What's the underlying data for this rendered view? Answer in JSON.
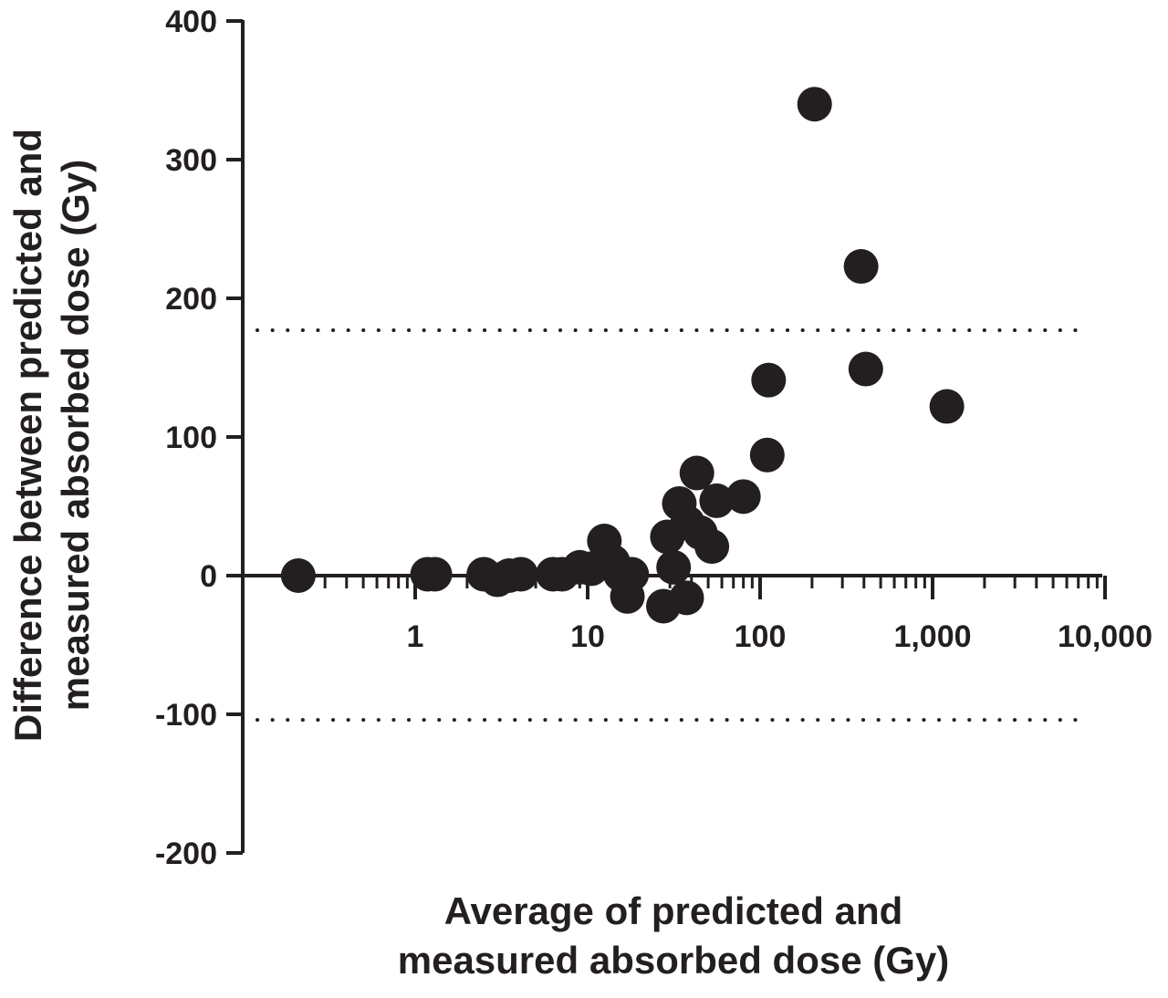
{
  "chart_data": {
    "type": "scatter",
    "xlabel": [
      "Average of predicted and",
      "measured absorbed dose (Gy)"
    ],
    "ylabel": [
      "Difference between predicted and",
      "measured absorbed dose (Gy)"
    ],
    "x_scale": "log",
    "xlim": [
      0.1,
      10000
    ],
    "ylim": [
      -200,
      400
    ],
    "x_ticks": [
      {
        "value": 1,
        "label": "1"
      },
      {
        "value": 10,
        "label": "10"
      },
      {
        "value": 100,
        "label": "100"
      },
      {
        "value": 1000,
        "label": "1,000"
      },
      {
        "value": 10000,
        "label": "10,000"
      }
    ],
    "y_ticks": [
      {
        "value": 400,
        "label": "400"
      },
      {
        "value": 300,
        "label": "300"
      },
      {
        "value": 200,
        "label": "200"
      },
      {
        "value": 100,
        "label": "100"
      },
      {
        "value": 0,
        "label": "0"
      },
      {
        "value": -100,
        "label": "-100"
      },
      {
        "value": -200,
        "label": "-200"
      }
    ],
    "reference_lines": [
      {
        "value": 0,
        "style": "solid"
      },
      {
        "value": 177,
        "style": "dotted"
      },
      {
        "value": -104,
        "style": "dotted"
      }
    ],
    "grid": false,
    "legend": "none",
    "marker_color": "#231f20",
    "points": [
      {
        "x": 0.21,
        "y": 0
      },
      {
        "x": 1.18,
        "y": 1
      },
      {
        "x": 1.3,
        "y": 1
      },
      {
        "x": 2.5,
        "y": 1
      },
      {
        "x": 3.0,
        "y": -3
      },
      {
        "x": 3.5,
        "y": 0
      },
      {
        "x": 4.1,
        "y": 1
      },
      {
        "x": 6.3,
        "y": 1
      },
      {
        "x": 7.1,
        "y": 1
      },
      {
        "x": 9.0,
        "y": 6
      },
      {
        "x": 10.5,
        "y": 5
      },
      {
        "x": 12.5,
        "y": 25
      },
      {
        "x": 14.0,
        "y": 10
      },
      {
        "x": 15.5,
        "y": 1
      },
      {
        "x": 18.0,
        "y": 1
      },
      {
        "x": 17.0,
        "y": -15
      },
      {
        "x": 27.5,
        "y": -22
      },
      {
        "x": 29.0,
        "y": 28
      },
      {
        "x": 31.5,
        "y": 6
      },
      {
        "x": 34.0,
        "y": 52
      },
      {
        "x": 38.0,
        "y": 38
      },
      {
        "x": 37.5,
        "y": -16
      },
      {
        "x": 43.0,
        "y": 74
      },
      {
        "x": 45.0,
        "y": 31
      },
      {
        "x": 52.5,
        "y": 21
      },
      {
        "x": 56.0,
        "y": 54
      },
      {
        "x": 80.0,
        "y": 57
      },
      {
        "x": 110.0,
        "y": 87
      },
      {
        "x": 112.0,
        "y": 141
      },
      {
        "x": 207.0,
        "y": 340
      },
      {
        "x": 385.0,
        "y": 223
      },
      {
        "x": 410.0,
        "y": 149
      },
      {
        "x": 1210.0,
        "y": 122
      }
    ]
  }
}
